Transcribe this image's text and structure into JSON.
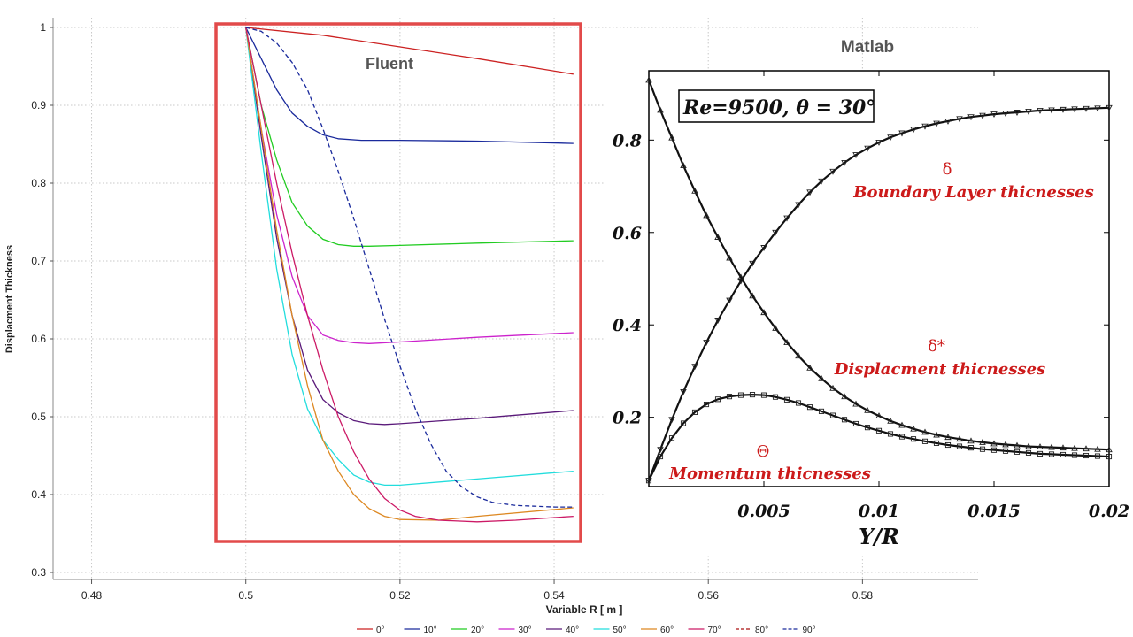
{
  "chart_data": [
    {
      "name": "fluent",
      "type": "line",
      "label": "Fluent",
      "xlabel": "Variable R [ m ]",
      "ylabel": "Displacment Thickness",
      "xlim": [
        0.475,
        0.595
      ],
      "ylim": [
        0.3,
        1.0
      ],
      "x_ticks": [
        0.48,
        0.5,
        0.52,
        0.54,
        0.56,
        0.58
      ],
      "x_tick_labels": [
        "0.48",
        "0.5",
        "0.52",
        "0.54",
        "0.56",
        "0.58"
      ],
      "y_ticks": [
        0.3,
        0.4,
        0.5,
        0.6,
        0.7,
        0.8,
        0.9,
        1.0
      ],
      "y_tick_labels": [
        "0.3",
        "0.4",
        "0.5",
        "0.6",
        "0.7",
        "0.8",
        "0.9",
        "1"
      ],
      "grid": true,
      "legend_position": "bottom",
      "series": [
        {
          "name": "0°",
          "color": "#cc2222",
          "dashed": false,
          "x": [
            0.5,
            0.51,
            0.52,
            0.53,
            0.5425
          ],
          "y": [
            1.0,
            0.99,
            0.975,
            0.96,
            0.94
          ]
        },
        {
          "name": "10°",
          "color": "#1a2a9c",
          "dashed": false,
          "x": [
            0.5,
            0.502,
            0.504,
            0.506,
            0.508,
            0.51,
            0.512,
            0.515,
            0.52,
            0.53,
            0.5425
          ],
          "y": [
            1.0,
            0.96,
            0.92,
            0.89,
            0.873,
            0.862,
            0.857,
            0.855,
            0.855,
            0.854,
            0.851
          ]
        },
        {
          "name": "20°",
          "color": "#22cc22",
          "dashed": false,
          "x": [
            0.5,
            0.502,
            0.504,
            0.506,
            0.508,
            0.51,
            0.512,
            0.514,
            0.516,
            0.52,
            0.53,
            0.5425
          ],
          "y": [
            1.0,
            0.9,
            0.83,
            0.775,
            0.745,
            0.728,
            0.721,
            0.719,
            0.719,
            0.72,
            0.723,
            0.726
          ]
        },
        {
          "name": "30°",
          "color": "#cc22cc",
          "dashed": false,
          "x": [
            0.5,
            0.502,
            0.504,
            0.506,
            0.508,
            0.51,
            0.512,
            0.514,
            0.516,
            0.52,
            0.53,
            0.5425
          ],
          "y": [
            1.0,
            0.87,
            0.76,
            0.68,
            0.63,
            0.605,
            0.598,
            0.595,
            0.594,
            0.596,
            0.602,
            0.608
          ]
        },
        {
          "name": "40°",
          "color": "#5a1a7a",
          "dashed": false,
          "x": [
            0.5,
            0.502,
            0.504,
            0.506,
            0.508,
            0.51,
            0.512,
            0.514,
            0.516,
            0.518,
            0.52,
            0.53,
            0.5425
          ],
          "y": [
            1.0,
            0.86,
            0.73,
            0.63,
            0.56,
            0.522,
            0.505,
            0.495,
            0.491,
            0.49,
            0.491,
            0.498,
            0.508
          ]
        },
        {
          "name": "50°",
          "color": "#22dddd",
          "dashed": false,
          "x": [
            0.5,
            0.502,
            0.504,
            0.506,
            0.508,
            0.51,
            0.512,
            0.514,
            0.516,
            0.518,
            0.52,
            0.53,
            0.5425
          ],
          "y": [
            1.0,
            0.84,
            0.69,
            0.58,
            0.51,
            0.47,
            0.445,
            0.425,
            0.416,
            0.412,
            0.412,
            0.42,
            0.43
          ]
        },
        {
          "name": "60°",
          "color": "#dd8822",
          "dashed": false,
          "x": [
            0.5,
            0.502,
            0.504,
            0.506,
            0.508,
            0.51,
            0.512,
            0.514,
            0.516,
            0.518,
            0.52,
            0.525,
            0.53,
            0.5425
          ],
          "y": [
            1.0,
            0.87,
            0.74,
            0.63,
            0.54,
            0.47,
            0.43,
            0.4,
            0.382,
            0.372,
            0.368,
            0.367,
            0.372,
            0.383
          ]
        },
        {
          "name": "70°",
          "color": "#cc1a66",
          "dashed": false,
          "x": [
            0.5,
            0.502,
            0.504,
            0.506,
            0.508,
            0.51,
            0.512,
            0.514,
            0.516,
            0.518,
            0.52,
            0.522,
            0.525,
            0.53,
            0.535,
            0.5425
          ],
          "y": [
            1.0,
            0.9,
            0.8,
            0.71,
            0.63,
            0.56,
            0.5,
            0.455,
            0.42,
            0.395,
            0.38,
            0.372,
            0.367,
            0.365,
            0.367,
            0.372
          ]
        },
        {
          "name": "80°",
          "color": "#aa1111",
          "dashed": true,
          "x": [],
          "y": []
        },
        {
          "name": "90°",
          "color": "#1a2a9c",
          "dashed": true,
          "x": [
            0.5,
            0.502,
            0.504,
            0.506,
            0.508,
            0.51,
            0.512,
            0.514,
            0.516,
            0.518,
            0.52,
            0.522,
            0.524,
            0.526,
            0.528,
            0.53,
            0.532,
            0.535,
            0.54,
            0.5425
          ],
          "y": [
            1.0,
            0.995,
            0.98,
            0.955,
            0.92,
            0.87,
            0.815,
            0.755,
            0.69,
            0.625,
            0.565,
            0.51,
            0.465,
            0.43,
            0.41,
            0.397,
            0.39,
            0.386,
            0.384,
            0.384
          ]
        }
      ]
    },
    {
      "name": "matlab",
      "type": "line",
      "label": "Matlab",
      "box_text": "Re=9500,  θ = 30°",
      "xlabel": "Y/R",
      "ylabel": "",
      "xlim": [
        0.0,
        0.02
      ],
      "ylim": [
        0.05,
        0.95
      ],
      "x_ticks": [
        0.005,
        0.01,
        0.015,
        0.02
      ],
      "x_tick_labels": [
        "0.005",
        "0.01",
        "0.015",
        "0.02"
      ],
      "y_ticks": [
        0.2,
        0.4,
        0.6,
        0.8
      ],
      "y_tick_labels": [
        "0.2",
        "0.4",
        "0.6",
        "0.8"
      ],
      "grid": false,
      "annotations": [
        {
          "symbol": "δ",
          "text": "Boundary Layer  thicnesses"
        },
        {
          "symbol": "δ*",
          "text": "Displacment thicnesses"
        },
        {
          "symbol": "Θ",
          "text": "Momentum thicnesses"
        }
      ],
      "series": [
        {
          "name": "δ",
          "marker": "triangle-down",
          "x": [
            0.0,
            0.0005,
            0.001,
            0.0015,
            0.002,
            0.0025,
            0.003,
            0.0035,
            0.004,
            0.0045,
            0.005,
            0.0055,
            0.006,
            0.0065,
            0.007,
            0.0075,
            0.008,
            0.0085,
            0.009,
            0.0095,
            0.01,
            0.0105,
            0.011,
            0.0115,
            0.012,
            0.0125,
            0.013,
            0.0135,
            0.014,
            0.0145,
            0.015,
            0.0155,
            0.016,
            0.0165,
            0.017,
            0.0175,
            0.018,
            0.0185,
            0.019,
            0.0195,
            0.02
          ],
          "y": [
            0.063,
            0.13,
            0.195,
            0.255,
            0.31,
            0.362,
            0.41,
            0.453,
            0.495,
            0.533,
            0.567,
            0.6,
            0.631,
            0.66,
            0.687,
            0.711,
            0.732,
            0.751,
            0.768,
            0.782,
            0.795,
            0.806,
            0.815,
            0.823,
            0.83,
            0.836,
            0.841,
            0.846,
            0.85,
            0.853,
            0.856,
            0.858,
            0.86,
            0.862,
            0.864,
            0.865,
            0.866,
            0.867,
            0.868,
            0.869,
            0.87
          ]
        },
        {
          "name": "δ*",
          "marker": "triangle-up",
          "x": [
            0.0,
            0.0005,
            0.001,
            0.0015,
            0.002,
            0.0025,
            0.003,
            0.0035,
            0.004,
            0.0045,
            0.005,
            0.0055,
            0.006,
            0.0065,
            0.007,
            0.0075,
            0.008,
            0.0085,
            0.009,
            0.0095,
            0.01,
            0.0105,
            0.011,
            0.0115,
            0.012,
            0.0125,
            0.013,
            0.0135,
            0.014,
            0.0145,
            0.015,
            0.0155,
            0.016,
            0.0165,
            0.017,
            0.0175,
            0.018,
            0.0185,
            0.019,
            0.0195,
            0.02
          ],
          "y": [
            0.93,
            0.865,
            0.805,
            0.745,
            0.69,
            0.637,
            0.59,
            0.545,
            0.503,
            0.463,
            0.427,
            0.393,
            0.362,
            0.333,
            0.307,
            0.284,
            0.263,
            0.245,
            0.229,
            0.215,
            0.203,
            0.192,
            0.183,
            0.175,
            0.168,
            0.162,
            0.157,
            0.153,
            0.149,
            0.146,
            0.143,
            0.141,
            0.139,
            0.137,
            0.136,
            0.135,
            0.134,
            0.133,
            0.132,
            0.131,
            0.13
          ]
        },
        {
          "name": "Θ",
          "marker": "square",
          "x": [
            0.0,
            0.0005,
            0.001,
            0.0015,
            0.002,
            0.0025,
            0.003,
            0.0035,
            0.004,
            0.0045,
            0.005,
            0.0055,
            0.006,
            0.0065,
            0.007,
            0.0075,
            0.008,
            0.0085,
            0.009,
            0.0095,
            0.01,
            0.0105,
            0.011,
            0.0115,
            0.012,
            0.0125,
            0.013,
            0.0135,
            0.014,
            0.0145,
            0.015,
            0.0155,
            0.016,
            0.0165,
            0.017,
            0.0175,
            0.018,
            0.0185,
            0.019,
            0.0195,
            0.02
          ],
          "y": [
            0.063,
            0.115,
            0.155,
            0.187,
            0.211,
            0.228,
            0.239,
            0.245,
            0.248,
            0.249,
            0.248,
            0.244,
            0.238,
            0.231,
            0.222,
            0.213,
            0.204,
            0.195,
            0.186,
            0.178,
            0.171,
            0.164,
            0.158,
            0.153,
            0.148,
            0.144,
            0.14,
            0.137,
            0.134,
            0.131,
            0.129,
            0.127,
            0.125,
            0.123,
            0.121,
            0.12,
            0.119,
            0.118,
            0.117,
            0.116,
            0.115
          ]
        }
      ]
    }
  ]
}
